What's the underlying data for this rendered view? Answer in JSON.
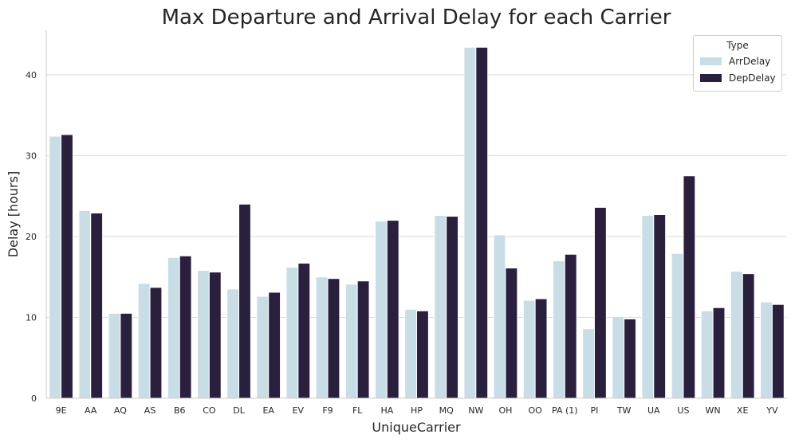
{
  "chart_data": {
    "type": "bar",
    "title": "Max Departure and Arrival Delay for each Carrier",
    "xlabel": "UniqueCarrier",
    "ylabel": "Delay [hours]",
    "ylim": [
      0,
      45.5
    ],
    "yticks": [
      0,
      10,
      20,
      30,
      40
    ],
    "grid": "horizontal",
    "legend": {
      "title": "Type",
      "placement": "top-right"
    },
    "categories": [
      "9E",
      "AA",
      "AQ",
      "AS",
      "B6",
      "CO",
      "DL",
      "EA",
      "EV",
      "F9",
      "FL",
      "HA",
      "HP",
      "MQ",
      "NW",
      "OH",
      "OO",
      "PA (1)",
      "PI",
      "TW",
      "UA",
      "US",
      "WN",
      "XE",
      "YV"
    ],
    "series": [
      {
        "name": "ArrDelay",
        "color": "#c9dde7",
        "values": [
          32.4,
          23.2,
          10.5,
          14.2,
          17.4,
          15.8,
          13.5,
          12.6,
          16.2,
          15.0,
          14.1,
          21.9,
          11.0,
          22.6,
          43.4,
          20.2,
          12.1,
          17.0,
          8.6,
          10.1,
          22.6,
          17.9,
          10.8,
          15.7,
          11.9
        ]
      },
      {
        "name": "DepDelay",
        "color": "#2b1f3e",
        "values": [
          32.6,
          22.9,
          10.5,
          13.7,
          17.6,
          15.6,
          24.0,
          13.1,
          16.7,
          14.8,
          14.5,
          22.0,
          10.8,
          22.5,
          43.4,
          16.1,
          12.3,
          17.8,
          23.6,
          9.8,
          22.7,
          27.5,
          11.2,
          15.4,
          11.6
        ]
      }
    ]
  }
}
